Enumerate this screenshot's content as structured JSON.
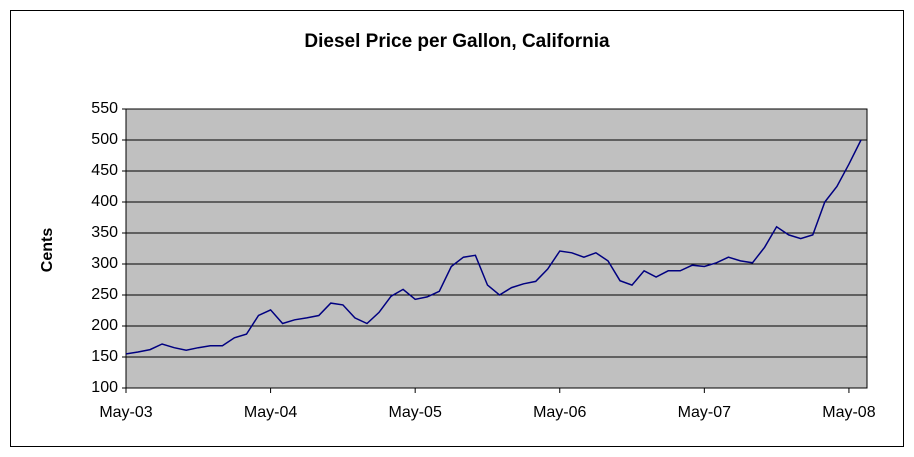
{
  "chart_data": {
    "type": "line",
    "title": "Diesel Price per Gallon, California",
    "y_label": "Cents",
    "categories": [
      "May-03",
      null,
      null,
      null,
      null,
      null,
      null,
      null,
      null,
      null,
      null,
      null,
      "May-04",
      null,
      null,
      null,
      null,
      null,
      null,
      null,
      null,
      null,
      null,
      null,
      "May-05",
      null,
      null,
      null,
      null,
      null,
      null,
      null,
      null,
      null,
      null,
      null,
      "May-06",
      null,
      null,
      null,
      null,
      null,
      null,
      null,
      null,
      null,
      null,
      null,
      "May-07",
      null,
      null,
      null,
      null,
      null,
      null,
      null,
      null,
      null,
      null,
      null,
      "May-08",
      null
    ],
    "series": [
      {
        "name": "Diesel",
        "color": "#000080",
        "values": [
          155,
          158,
          162,
          171,
          165,
          161,
          165,
          168,
          168,
          181,
          187,
          217,
          226,
          204,
          210,
          213,
          217,
          237,
          234,
          213,
          204,
          222,
          248,
          259,
          243,
          247,
          256,
          296,
          311,
          314,
          266,
          250,
          262,
          268,
          272,
          292,
          321,
          318,
          311,
          318,
          305,
          273,
          266,
          289,
          279,
          289,
          289,
          298,
          296,
          302,
          311,
          305,
          302,
          327,
          360,
          347,
          341,
          347,
          400,
          425,
          461,
          500
        ]
      }
    ],
    "ylim": [
      100,
      550
    ],
    "yticks": [
      100,
      150,
      200,
      250,
      300,
      350,
      400,
      450,
      500,
      550
    ],
    "grid": true
  }
}
